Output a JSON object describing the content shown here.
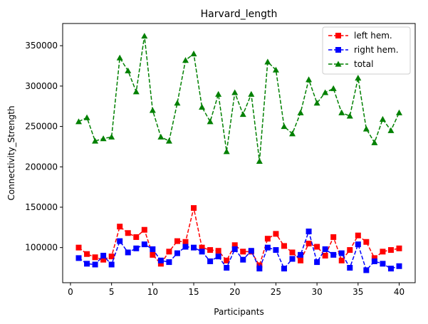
{
  "chart_data": {
    "type": "line",
    "title": "Harvard_length",
    "xlabel": "Participants",
    "ylabel": "Connectivity_Strength",
    "xlim": [
      -0.95,
      41.95
    ],
    "ylim": [
      56500,
      377500
    ],
    "xticks": [
      0,
      5,
      10,
      15,
      20,
      25,
      30,
      35,
      40
    ],
    "yticks": [
      100000,
      150000,
      200000,
      250000,
      300000,
      350000
    ],
    "ytick_labels": [
      "100000",
      "150000",
      "200000",
      "250000",
      "300000",
      "350000"
    ],
    "grid": false,
    "legend_position": "top-right",
    "x": [
      1,
      2,
      3,
      4,
      5,
      6,
      7,
      8,
      9,
      10,
      11,
      12,
      13,
      14,
      15,
      16,
      17,
      18,
      19,
      20,
      21,
      22,
      23,
      24,
      25,
      26,
      27,
      28,
      29,
      30,
      31,
      32,
      33,
      34,
      35,
      36,
      37,
      38,
      39,
      40
    ],
    "series": [
      {
        "name": "left hem.",
        "color": "#ff0000",
        "marker": "square",
        "values": [
          100000,
          92000,
          88000,
          85000,
          89000,
          126000,
          118000,
          113000,
          122000,
          91000,
          80000,
          95000,
          108000,
          107000,
          149000,
          100000,
          97000,
          96000,
          84000,
          103000,
          95000,
          95000,
          78000,
          111000,
          117000,
          102000,
          94000,
          84000,
          105000,
          101000,
          90000,
          113000,
          84000,
          97000,
          115000,
          107000,
          87000,
          95000,
          97000,
          99000
        ]
      },
      {
        "name": "right hem.",
        "color": "#0000ff",
        "marker": "square",
        "values": [
          87000,
          80000,
          79000,
          90000,
          79000,
          108000,
          94000,
          99000,
          104000,
          98000,
          84000,
          82000,
          93000,
          101000,
          100000,
          95000,
          83000,
          89000,
          75000,
          98000,
          85000,
          96000,
          74000,
          100000,
          97000,
          74000,
          86000,
          91000,
          120000,
          82000,
          98000,
          91000,
          93000,
          75000,
          104000,
          72000,
          83000,
          80000,
          74000,
          77000
        ]
      },
      {
        "name": "total",
        "color": "#008000",
        "marker": "triangle",
        "values": [
          256000,
          261000,
          232000,
          235000,
          237000,
          335000,
          319000,
          293000,
          362000,
          270000,
          237000,
          232000,
          279000,
          332000,
          340000,
          274000,
          256000,
          290000,
          219000,
          292000,
          265000,
          290000,
          207000,
          330000,
          320000,
          250000,
          241000,
          267000,
          308000,
          279000,
          292000,
          297000,
          267000,
          263000,
          310000,
          247000,
          230000,
          259000,
          245000,
          267000
        ]
      }
    ]
  }
}
